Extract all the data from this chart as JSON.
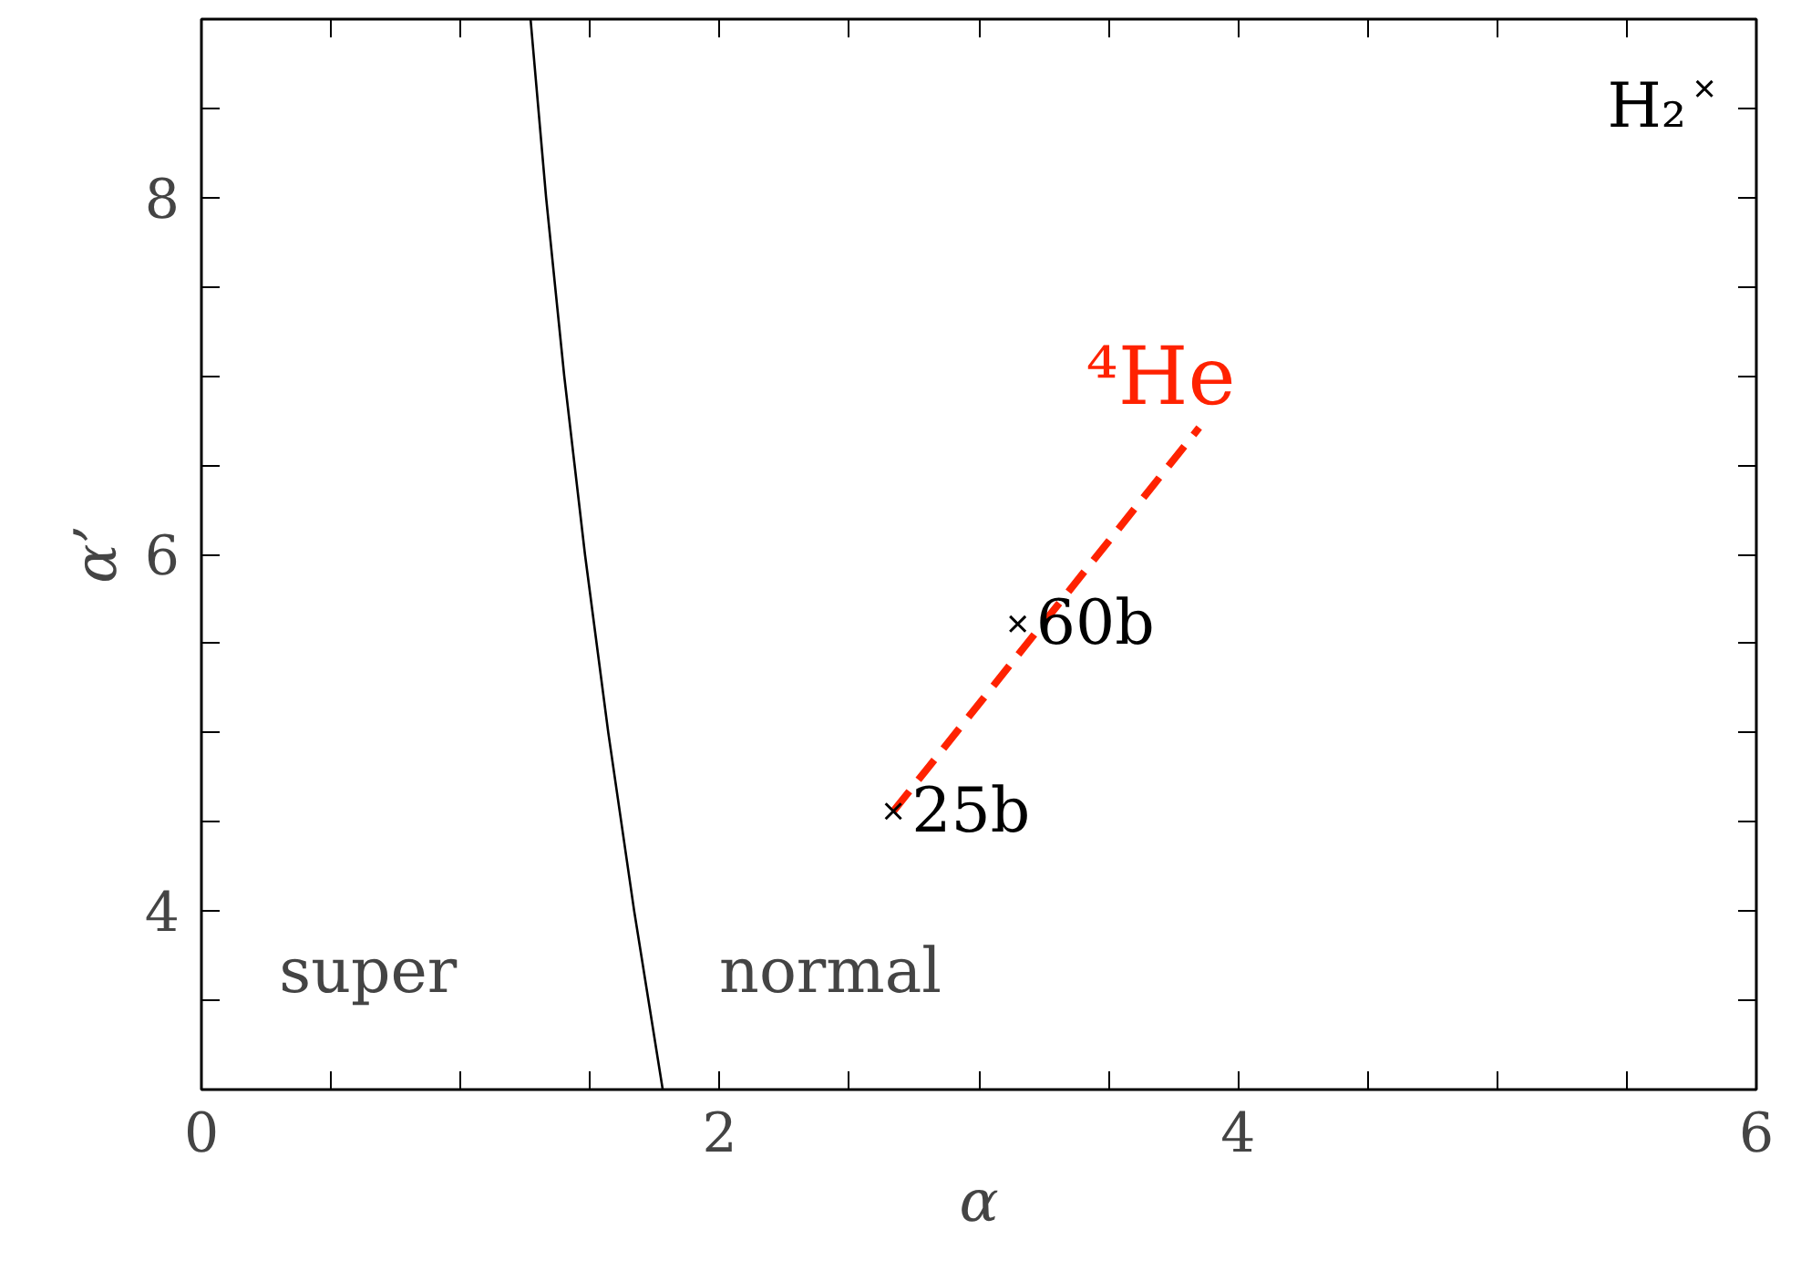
{
  "chart_data": {
    "type": "scatter",
    "xlabel": "α",
    "ylabel": "α’",
    "xlim": [
      0,
      6
    ],
    "ylim": [
      3,
      9
    ],
    "xticks": [
      0,
      {
        "value": 0.5,
        "label": null
      },
      {
        "value": 1,
        "label": null
      },
      {
        "value": 1.5,
        "label": null
      },
      2,
      {
        "value": 2.5,
        "label": null
      },
      {
        "value": 3,
        "label": null
      },
      {
        "value": 3.5,
        "label": null
      },
      4,
      {
        "value": 4.5,
        "label": null
      },
      {
        "value": 5,
        "label": null
      },
      {
        "value": 5.5,
        "label": null
      },
      6
    ],
    "yticks": [
      {
        "value": 3.5,
        "label": null
      },
      4,
      {
        "value": 4.5,
        "label": null
      },
      {
        "value": 5,
        "label": null
      },
      {
        "value": 5.5,
        "label": null
      },
      6,
      {
        "value": 6.5,
        "label": null
      },
      {
        "value": 7,
        "label": null
      },
      {
        "value": 7.5,
        "label": null
      },
      8,
      {
        "value": 8.5,
        "label": null
      }
    ],
    "grid": false,
    "series": [
      {
        "type": "line",
        "x": [
          1.27,
          1.33,
          1.4,
          1.48,
          1.57,
          1.67,
          1.78
        ],
        "values": [
          9,
          8,
          7,
          6,
          5,
          4,
          3
        ],
        "color": "#000000",
        "line_style": "solid"
      },
      {
        "type": "line",
        "name": "⁴He",
        "x": [
          2.67,
          3.85
        ],
        "values": [
          4.56,
          6.71
        ],
        "color": "#ff2200",
        "line_style": "dashed"
      },
      {
        "name": "25b",
        "x": [
          2.67
        ],
        "values": [
          4.56
        ],
        "color": "#000000",
        "marker": "cross"
      },
      {
        "name": "60b",
        "x": [
          3.15
        ],
        "values": [
          5.61
        ],
        "color": "#000000",
        "marker": "cross"
      },
      {
        "name": "H₂",
        "x": [
          5.8
        ],
        "values": [
          8.61
        ],
        "color": "#000000",
        "marker": "cross"
      }
    ],
    "annotations": [
      "super",
      "normal"
    ]
  }
}
